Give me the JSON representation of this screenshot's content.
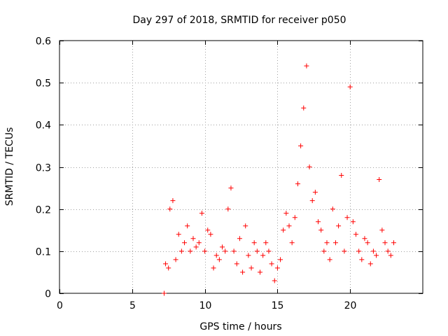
{
  "chart_data": {
    "type": "scatter",
    "title": "Day 297 of 2018, SRMTID for receiver p050",
    "xlabel": "GPS time / hours",
    "ylabel": "SRMTID / TECUs",
    "xlim": [
      0,
      25
    ],
    "ylim": [
      0,
      0.6
    ],
    "xticks": [
      0,
      5,
      10,
      15,
      20
    ],
    "xtick_labels": [
      "0",
      "5",
      "10",
      "15",
      "20"
    ],
    "yticks": [
      0,
      0.1,
      0.2,
      0.3,
      0.4,
      0.5,
      0.6
    ],
    "ytick_labels": [
      "0",
      "0.1",
      "0.2",
      "0.3",
      "0.4",
      "0.5",
      "0.6"
    ],
    "grid": true,
    "marker": "plus",
    "marker_color": "#ff0000",
    "series": [
      {
        "name": "SRMTID",
        "x": [
          7.2,
          7.3,
          7.5,
          7.6,
          7.8,
          8.0,
          8.2,
          8.4,
          8.6,
          8.8,
          9.0,
          9.2,
          9.4,
          9.6,
          9.8,
          10.0,
          10.2,
          10.4,
          10.6,
          10.8,
          11.0,
          11.2,
          11.4,
          11.6,
          11.8,
          12.0,
          12.2,
          12.4,
          12.6,
          12.8,
          13.0,
          13.2,
          13.4,
          13.6,
          13.8,
          14.0,
          14.2,
          14.4,
          14.6,
          14.8,
          15.0,
          15.2,
          15.4,
          15.6,
          15.8,
          16.0,
          16.2,
          16.4,
          16.6,
          16.8,
          17.0,
          17.2,
          17.4,
          17.6,
          17.8,
          18.0,
          18.2,
          18.4,
          18.6,
          18.8,
          19.0,
          19.2,
          19.4,
          19.6,
          19.8,
          20.0,
          20.2,
          20.4,
          20.6,
          20.8,
          21.0,
          21.2,
          21.4,
          21.6,
          21.8,
          22.0,
          22.2,
          22.4,
          22.6,
          22.8,
          23.0
        ],
        "y": [
          0.0,
          0.07,
          0.06,
          0.2,
          0.22,
          0.08,
          0.14,
          0.1,
          0.12,
          0.16,
          0.1,
          0.13,
          0.11,
          0.12,
          0.19,
          0.1,
          0.15,
          0.14,
          0.06,
          0.09,
          0.08,
          0.11,
          0.1,
          0.2,
          0.25,
          0.1,
          0.07,
          0.13,
          0.05,
          0.16,
          0.09,
          0.06,
          0.12,
          0.1,
          0.05,
          0.09,
          0.12,
          0.1,
          0.07,
          0.03,
          0.06,
          0.08,
          0.15,
          0.19,
          0.16,
          0.12,
          0.18,
          0.26,
          0.35,
          0.44,
          0.54,
          0.3,
          0.22,
          0.24,
          0.17,
          0.15,
          0.1,
          0.12,
          0.08,
          0.2,
          0.12,
          0.16,
          0.28,
          0.1,
          0.18,
          0.49,
          0.17,
          0.14,
          0.1,
          0.08,
          0.13,
          0.12,
          0.07,
          0.1,
          0.09,
          0.27,
          0.15,
          0.12,
          0.1,
          0.09,
          0.12
        ],
        "color": "#ff0000"
      }
    ]
  }
}
